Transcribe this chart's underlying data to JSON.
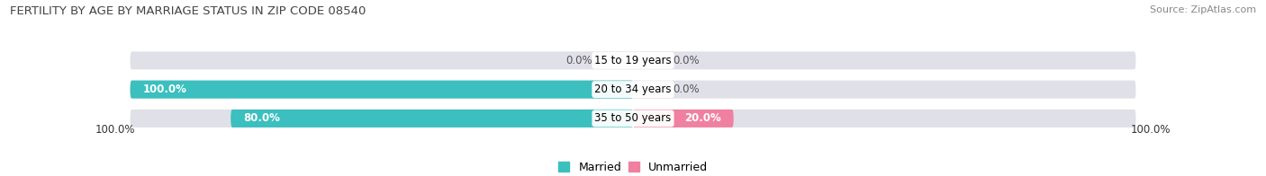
{
  "title": "FERTILITY BY AGE BY MARRIAGE STATUS IN ZIP CODE 08540",
  "source": "Source: ZipAtlas.com",
  "categories": [
    "15 to 19 years",
    "20 to 34 years",
    "35 to 50 years"
  ],
  "married_values": [
    0.0,
    100.0,
    80.0
  ],
  "unmarried_values": [
    0.0,
    0.0,
    20.0
  ],
  "married_color": "#3bbfbf",
  "unmarried_color": "#f080a0",
  "bar_bg_color": "#e0e0e8",
  "background_color": "#ffffff",
  "title_fontsize": 9.5,
  "source_fontsize": 8,
  "label_fontsize": 8.5,
  "legend_fontsize": 9,
  "bar_height": 0.62,
  "max_val": 100.0,
  "axis_label": "100.0%"
}
